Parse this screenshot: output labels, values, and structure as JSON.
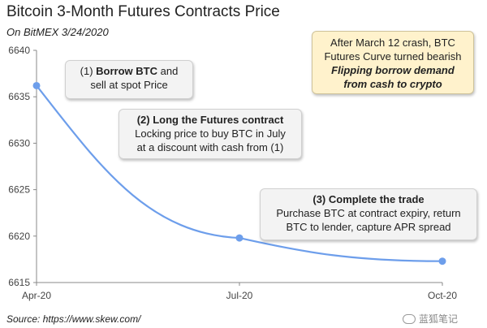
{
  "chart_data": {
    "type": "line",
    "title": "Bitcoin 3-Month Futures Contracts Price",
    "subtitle": "On BitMEX 3/24/2020",
    "source": "Source: https://www.skew.com/",
    "x": [
      "Apr-20",
      "Jul-20",
      "Oct-20"
    ],
    "y_ticks": [
      6615,
      6620,
      6625,
      6630,
      6635,
      6640
    ],
    "ylim": [
      6615,
      6640
    ],
    "series": [
      {
        "values": [
          6636.2,
          6619.8,
          6617.3
        ],
        "color": "#6d9eeb"
      }
    ],
    "grid": false
  },
  "annotations": {
    "step1": {
      "num": "(1) ",
      "bold": "Borrow BTC",
      "tail": " and",
      "line2": "sell at spot Price"
    },
    "step2": {
      "bold": "(2) Long the Futures contract",
      "line2": "Locking price to buy BTC in July",
      "line3": "at a discount with cash from (1)"
    },
    "step3": {
      "bold": "(3) Complete the trade",
      "line2": "Purchase BTC at contract expiry, return",
      "line3": "BTC to lender, capture APR spread"
    },
    "note": {
      "line1": "After March 12 crash, BTC",
      "line2": "Futures Curve turned bearish",
      "line3": "Flipping borrow demand",
      "line4": "from cash to crypto"
    }
  },
  "watermark": {
    "text": "蓝狐笔记",
    "icon": "wechat-icon"
  }
}
